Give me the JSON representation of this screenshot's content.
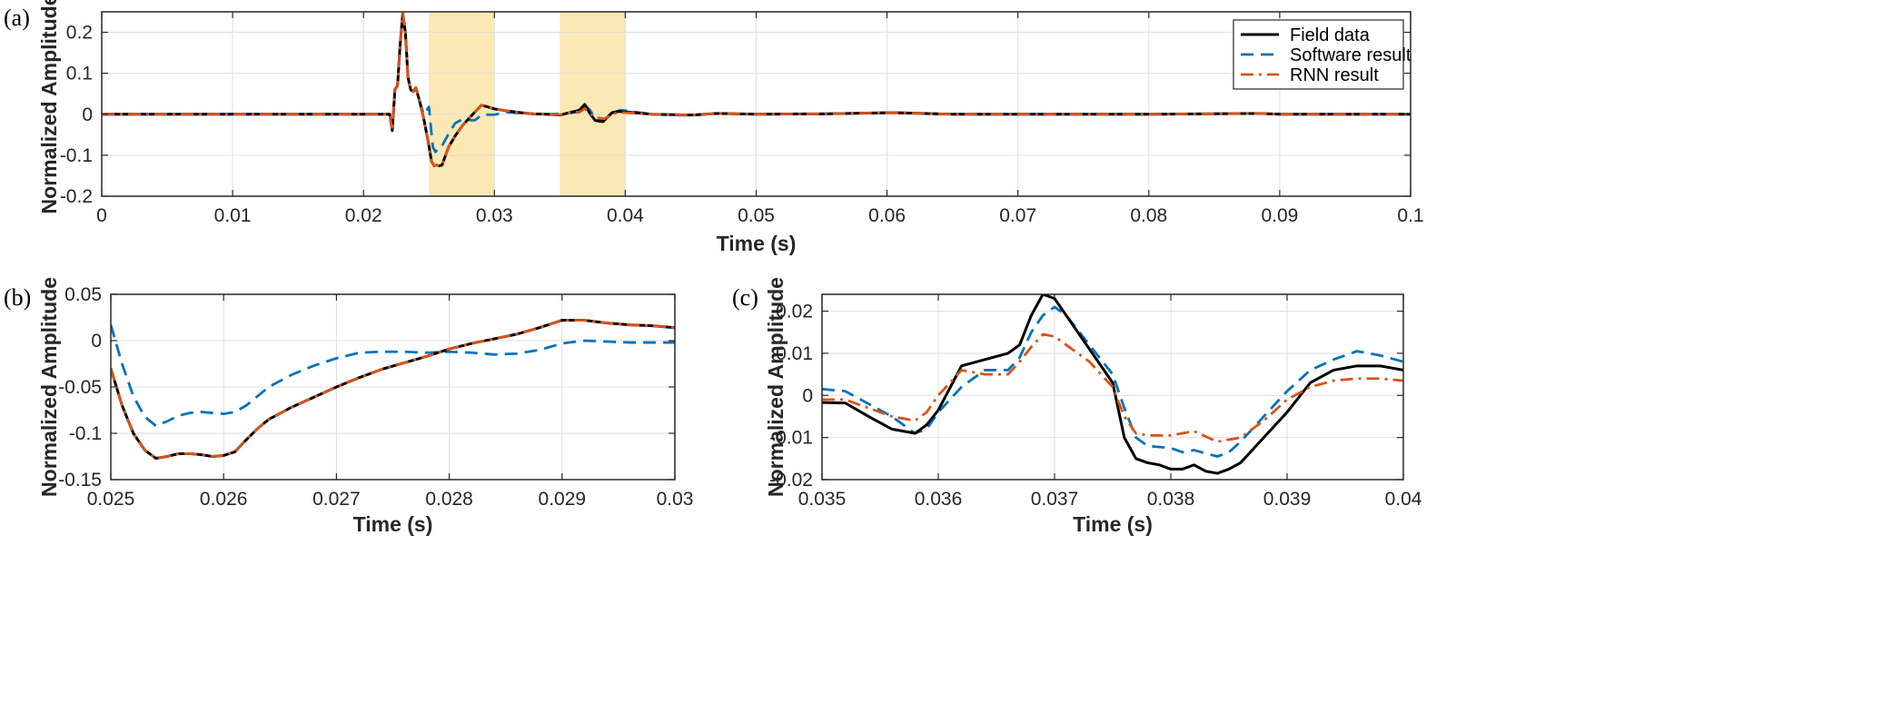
{
  "legend": {
    "entries": [
      {
        "label": "Field data",
        "color": "#000000",
        "dash": "solid"
      },
      {
        "label": "Software result",
        "color": "#0072BD",
        "dash": "dashed"
      },
      {
        "label": "RNN result",
        "color": "#D95319",
        "dash": "dashdot"
      }
    ],
    "placement": "top-right of panel (a)"
  },
  "colors": {
    "field": "#000000",
    "software": "#0072BD",
    "rnn": "#D95319",
    "highlight": "#FBE8B4",
    "grid": "#dfdfdf"
  },
  "chart_data": [
    {
      "type": "line",
      "panel_label": "(a)",
      "xlabel": "Time (s)",
      "ylabel": "Normalized Amplitude",
      "xlim": [
        0,
        0.1
      ],
      "ylim": [
        -0.2,
        0.25
      ],
      "xticks": [
        0,
        0.01,
        0.02,
        0.03,
        0.04,
        0.05,
        0.06,
        0.07,
        0.08,
        0.09,
        0.1
      ],
      "xtick_labels": [
        "0",
        "0.01",
        "0.02",
        "0.03",
        "0.04",
        "0.05",
        "0.06",
        "0.07",
        "0.08",
        "0.09",
        "0.1"
      ],
      "yticks": [
        -0.2,
        -0.1,
        0,
        0.1,
        0.2
      ],
      "ytick_labels": [
        "-0.2",
        "-0.1",
        "0",
        "0.1",
        "0.2"
      ],
      "grid": true,
      "highlight_ranges": [
        [
          0.025,
          0.03
        ],
        [
          0.035,
          0.04
        ]
      ],
      "series": [
        {
          "key": "field",
          "name": "Field data",
          "x": [
            0,
            0.022,
            0.0221,
            0.0222,
            0.0224,
            0.0226,
            0.0228,
            0.023,
            0.0232,
            0.0234,
            0.0236,
            0.0238,
            0.024,
            0.0243,
            0.0246,
            0.0249,
            0.0252,
            0.0254,
            0.0256,
            0.0258,
            0.026,
            0.0265,
            0.027,
            0.0275,
            0.028,
            0.0285,
            0.029,
            0.0295,
            0.03,
            0.031,
            0.032,
            0.033,
            0.034,
            0.035,
            0.036,
            0.0365,
            0.0369,
            0.0373,
            0.0377,
            0.038,
            0.0383,
            0.0387,
            0.039,
            0.0395,
            0.04,
            0.042,
            0.045,
            0.047,
            0.05,
            0.055,
            0.0605,
            0.065,
            0.07,
            0.08,
            0.0885,
            0.09,
            0.1
          ],
          "y": [
            0,
            0,
            -0.02,
            -0.04,
            0.06,
            0.07,
            0.17,
            0.245,
            0.2,
            0.09,
            0.06,
            0.055,
            0.065,
            0.03,
            -0.01,
            -0.06,
            -0.115,
            -0.126,
            -0.124,
            -0.126,
            -0.124,
            -0.08,
            -0.053,
            -0.03,
            -0.012,
            0.005,
            0.022,
            0.018,
            0.013,
            0.008,
            0.004,
            0.001,
            0,
            -0.002,
            0.006,
            0.01,
            0.024,
            0.002,
            -0.015,
            -0.017,
            -0.018,
            -0.005,
            0.004,
            0.007,
            0.006,
            0,
            -0.002,
            0.002,
            0,
            0.001,
            0.004,
            0,
            0,
            0,
            0.002,
            0,
            0
          ]
        },
        {
          "key": "software",
          "name": "Software result",
          "x": [
            0,
            0.022,
            0.0221,
            0.0222,
            0.0224,
            0.0226,
            0.0228,
            0.023,
            0.0232,
            0.0234,
            0.0236,
            0.0238,
            0.024,
            0.0243,
            0.0246,
            0.025,
            0.0253,
            0.0255,
            0.0258,
            0.026,
            0.0265,
            0.027,
            0.0275,
            0.028,
            0.0285,
            0.029,
            0.0295,
            0.03,
            0.031,
            0.032,
            0.033,
            0.034,
            0.035,
            0.036,
            0.0365,
            0.037,
            0.0373,
            0.0377,
            0.038,
            0.0384,
            0.0388,
            0.039,
            0.0396,
            0.04,
            0.042,
            0.045,
            0.047,
            0.05,
            0.055,
            0.0605,
            0.065,
            0.07,
            0.08,
            0.0885,
            0.09,
            0.1
          ],
          "y": [
            0,
            0,
            -0.02,
            -0.04,
            0.06,
            0.07,
            0.17,
            0.245,
            0.2,
            0.09,
            0.06,
            0.055,
            0.065,
            0.03,
            0.0,
            0.018,
            -0.08,
            -0.092,
            -0.078,
            -0.077,
            -0.048,
            -0.022,
            -0.013,
            -0.014,
            -0.015,
            -0.002,
            -0.001,
            -0.001,
            0.005,
            0.003,
            0.001,
            0,
            0.001,
            0.004,
            0.006,
            0.02,
            0.01,
            -0.01,
            -0.013,
            -0.013,
            -0.004,
            0.002,
            0.01,
            0.009,
            0,
            -0.003,
            0.002,
            0,
            0.001,
            0.004,
            0,
            0,
            0,
            0.002,
            0,
            0
          ]
        },
        {
          "key": "rnn",
          "name": "RNN result",
          "x": [
            0,
            0.022,
            0.0221,
            0.0222,
            0.0224,
            0.0226,
            0.0228,
            0.023,
            0.0232,
            0.0234,
            0.0236,
            0.0238,
            0.024,
            0.0243,
            0.0246,
            0.0249,
            0.0252,
            0.0254,
            0.0256,
            0.0258,
            0.026,
            0.0265,
            0.027,
            0.0275,
            0.028,
            0.0285,
            0.029,
            0.0295,
            0.03,
            0.031,
            0.032,
            0.033,
            0.034,
            0.035,
            0.036,
            0.0365,
            0.0369,
            0.0373,
            0.0377,
            0.038,
            0.0384,
            0.0388,
            0.039,
            0.0396,
            0.04,
            0.042,
            0.045,
            0.047,
            0.05,
            0.055,
            0.0605,
            0.065,
            0.07,
            0.08,
            0.0885,
            0.09,
            0.1
          ],
          "y": [
            0,
            0,
            -0.02,
            -0.04,
            0.06,
            0.07,
            0.17,
            0.245,
            0.2,
            0.09,
            0.06,
            0.055,
            0.065,
            0.03,
            -0.01,
            -0.06,
            -0.115,
            -0.126,
            -0.124,
            -0.126,
            -0.124,
            -0.08,
            -0.053,
            -0.03,
            -0.012,
            0.005,
            0.022,
            0.018,
            0.013,
            0.008,
            0.004,
            0.001,
            0,
            -0.001,
            0.005,
            0.005,
            0.014,
            0.003,
            -0.009,
            -0.009,
            -0.011,
            -0.004,
            0.001,
            0.004,
            0.004,
            0,
            -0.002,
            0.002,
            0,
            0.001,
            0.004,
            0,
            0,
            0,
            0.002,
            0,
            0
          ]
        }
      ]
    },
    {
      "type": "line",
      "panel_label": "(b)",
      "xlabel": "Time (s)",
      "ylabel": "Normalized Amplitude",
      "xlim": [
        0.025,
        0.03
      ],
      "ylim": [
        -0.15,
        0.05
      ],
      "xticks": [
        0.025,
        0.026,
        0.027,
        0.028,
        0.029,
        0.03
      ],
      "xtick_labels": [
        "0.025",
        "0.026",
        "0.027",
        "0.028",
        "0.029",
        "0.03"
      ],
      "yticks": [
        -0.15,
        -0.1,
        -0.05,
        0,
        0.05
      ],
      "ytick_labels": [
        "-0.15",
        "-0.1",
        "-0.05",
        "0",
        "0.05"
      ],
      "grid": true,
      "series": [
        {
          "key": "field",
          "name": "Field data",
          "x": [
            0.025,
            0.0251,
            0.0252,
            0.0253,
            0.0254,
            0.0255,
            0.0256,
            0.0257,
            0.0258,
            0.0259,
            0.026,
            0.0261,
            0.0262,
            0.0263,
            0.0264,
            0.0266,
            0.0268,
            0.027,
            0.0272,
            0.0274,
            0.0276,
            0.0278,
            0.028,
            0.0282,
            0.0284,
            0.0286,
            0.0288,
            0.029,
            0.0292,
            0.0294,
            0.0296,
            0.0298,
            0.03
          ],
          "y": [
            -0.03,
            -0.07,
            -0.1,
            -0.118,
            -0.127,
            -0.125,
            -0.122,
            -0.122,
            -0.123,
            -0.125,
            -0.124,
            -0.12,
            -0.107,
            -0.095,
            -0.085,
            -0.072,
            -0.061,
            -0.05,
            -0.04,
            -0.031,
            -0.024,
            -0.017,
            -0.009,
            -0.003,
            0.002,
            0.007,
            0.014,
            0.022,
            0.022,
            0.019,
            0.017,
            0.016,
            0.014
          ]
        },
        {
          "key": "software",
          "name": "Software result",
          "x": [
            0.025,
            0.0251,
            0.0252,
            0.0253,
            0.0254,
            0.0255,
            0.0256,
            0.0257,
            0.0258,
            0.0259,
            0.026,
            0.0261,
            0.0262,
            0.0263,
            0.0264,
            0.0266,
            0.0268,
            0.027,
            0.0272,
            0.0274,
            0.0276,
            0.0278,
            0.028,
            0.0282,
            0.0284,
            0.0286,
            0.0288,
            0.029,
            0.0292,
            0.0294,
            0.0296,
            0.0298,
            0.03
          ],
          "y": [
            0.017,
            -0.025,
            -0.06,
            -0.082,
            -0.092,
            -0.087,
            -0.081,
            -0.078,
            -0.077,
            -0.078,
            -0.079,
            -0.077,
            -0.07,
            -0.06,
            -0.05,
            -0.037,
            -0.027,
            -0.019,
            -0.013,
            -0.012,
            -0.012,
            -0.013,
            -0.012,
            -0.013,
            -0.015,
            -0.014,
            -0.01,
            -0.003,
            0.0,
            -0.001,
            -0.002,
            -0.002,
            -0.002
          ]
        },
        {
          "key": "rnn",
          "name": "RNN result",
          "x": [
            0.025,
            0.0251,
            0.0252,
            0.0253,
            0.0254,
            0.0255,
            0.0256,
            0.0257,
            0.0258,
            0.0259,
            0.026,
            0.0261,
            0.0262,
            0.0263,
            0.0264,
            0.0266,
            0.0268,
            0.027,
            0.0272,
            0.0274,
            0.0276,
            0.0278,
            0.028,
            0.0282,
            0.0284,
            0.0286,
            0.0288,
            0.029,
            0.0292,
            0.0294,
            0.0296,
            0.0298,
            0.03
          ],
          "y": [
            -0.03,
            -0.07,
            -0.1,
            -0.118,
            -0.127,
            -0.125,
            -0.122,
            -0.122,
            -0.123,
            -0.125,
            -0.124,
            -0.12,
            -0.107,
            -0.095,
            -0.085,
            -0.072,
            -0.061,
            -0.05,
            -0.04,
            -0.031,
            -0.024,
            -0.017,
            -0.009,
            -0.003,
            0.002,
            0.007,
            0.014,
            0.022,
            0.022,
            0.019,
            0.017,
            0.016,
            0.014
          ]
        }
      ]
    },
    {
      "type": "line",
      "panel_label": "(c)",
      "xlabel": "Time (s)",
      "ylabel": "Normalized Amplitude",
      "xlim": [
        0.035,
        0.04
      ],
      "ylim": [
        -0.02,
        0.024
      ],
      "xticks": [
        0.035,
        0.036,
        0.037,
        0.038,
        0.039,
        0.04
      ],
      "xtick_labels": [
        "0.035",
        "0.036",
        "0.037",
        "0.038",
        "0.039",
        "0.04"
      ],
      "yticks": [
        -0.02,
        -0.01,
        0,
        0.01,
        0.02
      ],
      "ytick_labels": [
        "-0.02",
        "-0.01",
        "0",
        "0.01",
        "0.02"
      ],
      "grid": true,
      "series": [
        {
          "key": "field",
          "name": "Field data",
          "x": [
            0.035,
            0.0352,
            0.0354,
            0.0356,
            0.0358,
            0.0359,
            0.036,
            0.0362,
            0.0364,
            0.0366,
            0.0367,
            0.0368,
            0.0369,
            0.037,
            0.0371,
            0.0373,
            0.0375,
            0.0376,
            0.0377,
            0.0378,
            0.0379,
            0.038,
            0.0381,
            0.0382,
            0.0383,
            0.0384,
            0.0385,
            0.0386,
            0.0388,
            0.039,
            0.0392,
            0.0394,
            0.0396,
            0.0398,
            0.04
          ],
          "y": [
            -0.0017,
            -0.0018,
            -0.005,
            -0.008,
            -0.009,
            -0.007,
            -0.0035,
            0.007,
            0.0085,
            0.01,
            0.012,
            0.019,
            0.024,
            0.023,
            0.019,
            0.011,
            0.003,
            -0.01,
            -0.015,
            -0.016,
            -0.0165,
            -0.0175,
            -0.0175,
            -0.0165,
            -0.018,
            -0.0185,
            -0.0175,
            -0.016,
            -0.01,
            -0.004,
            0.003,
            0.006,
            0.007,
            0.007,
            0.006
          ]
        },
        {
          "key": "software",
          "name": "Software result",
          "x": [
            0.035,
            0.0352,
            0.0354,
            0.0356,
            0.0358,
            0.0359,
            0.036,
            0.0362,
            0.0364,
            0.0366,
            0.0367,
            0.0368,
            0.0369,
            0.037,
            0.0371,
            0.0373,
            0.0375,
            0.0376,
            0.0377,
            0.0378,
            0.038,
            0.0381,
            0.0382,
            0.0384,
            0.0385,
            0.0386,
            0.0388,
            0.039,
            0.0392,
            0.0394,
            0.0396,
            0.0398,
            0.04
          ],
          "y": [
            0.0015,
            0.001,
            -0.002,
            -0.005,
            -0.009,
            -0.008,
            -0.004,
            0.002,
            0.006,
            0.006,
            0.009,
            0.015,
            0.019,
            0.021,
            0.019,
            0.012,
            0.005,
            -0.003,
            -0.01,
            -0.012,
            -0.0125,
            -0.0135,
            -0.013,
            -0.0145,
            -0.0135,
            -0.011,
            -0.005,
            0.001,
            0.006,
            0.0085,
            0.0105,
            0.0095,
            0.008
          ]
        },
        {
          "key": "rnn",
          "name": "RNN result",
          "x": [
            0.035,
            0.0352,
            0.0354,
            0.0356,
            0.0358,
            0.0359,
            0.036,
            0.0362,
            0.0364,
            0.0366,
            0.0367,
            0.0368,
            0.0369,
            0.037,
            0.0371,
            0.0373,
            0.0375,
            0.0376,
            0.0377,
            0.0378,
            0.038,
            0.0381,
            0.0382,
            0.0384,
            0.0385,
            0.0386,
            0.0388,
            0.039,
            0.0392,
            0.0394,
            0.0396,
            0.0398,
            0.04
          ],
          "y": [
            -0.001,
            -0.001,
            -0.003,
            -0.005,
            -0.006,
            -0.004,
            0.0,
            0.006,
            0.005,
            0.005,
            0.008,
            0.0115,
            0.0145,
            0.014,
            0.012,
            0.008,
            0.002,
            -0.005,
            -0.009,
            -0.0095,
            -0.0095,
            -0.009,
            -0.0085,
            -0.011,
            -0.0105,
            -0.01,
            -0.006,
            -0.001,
            0.002,
            0.0035,
            0.004,
            0.004,
            0.0035
          ]
        }
      ]
    }
  ]
}
